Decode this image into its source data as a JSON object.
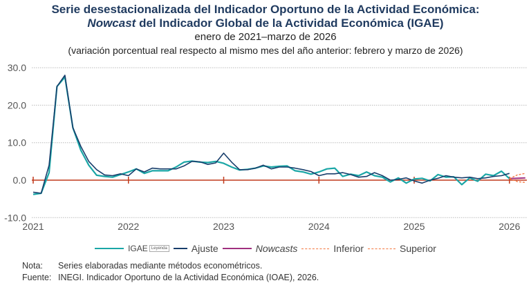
{
  "title": {
    "line1": "Serie desestacionalizada del Indicador Oportuno de la Actividad Económica:",
    "line2_em": "Nowcast",
    "line2_rest": " del Indicador Global de la Actividad Económica (IGAE)",
    "period": "enero de 2021–marzo de 2026",
    "subtitle": "(variación porcentual real respecto al mismo mes del año anterior: febrero y marzo de 2026)"
  },
  "legend": {
    "igae": "IGAE",
    "tooltip": "Leyenda",
    "ajuste": "Ajuste",
    "nowcasts": "Nowcasts",
    "inferior": "Inferior",
    "superior": "Superior"
  },
  "notes": {
    "nota_label": "Nota:",
    "nota": "Series elaboradas mediante métodos econométricos.",
    "fuente_label": "Fuente:",
    "fuente": "INEGI. Indicador Oportuno de la Actividad Económica (IOAE), 2026."
  },
  "chart_data": {
    "type": "line",
    "ylim": [
      -10,
      30
    ],
    "yticks": [
      "30.0",
      "20.0",
      "10.0",
      "0.0",
      "-10.0"
    ],
    "ytick_values": [
      30,
      20,
      10,
      0,
      -10
    ],
    "xticks": [
      "2021",
      "2022",
      "2023",
      "2024",
      "2025",
      "2026"
    ],
    "x_start": "2021-01",
    "grid": "horizontal dotted",
    "legend_position": "bottom",
    "colors": {
      "igae": "#1aa6a6",
      "ajuste": "#173d6b",
      "nowcasts": "#a0307f",
      "bands": "#f4743b",
      "zero": "#c0391b"
    },
    "series": [
      {
        "name": "IGAE",
        "start": "2021-01",
        "values": [
          -3.8,
          -3.5,
          2,
          25,
          27.5,
          14,
          8,
          4,
          1.3,
          1,
          0.8,
          1.5,
          2.2,
          3,
          1.8,
          2.5,
          2.5,
          2.5,
          3.5,
          4.8,
          5.1,
          4.8,
          4.7,
          5,
          4.5,
          3.5,
          2.7,
          2.9,
          3.2,
          3.8,
          3.5,
          3.7,
          3.8,
          2.5,
          2.2,
          1.6,
          2.2,
          3,
          3.2,
          1,
          1.6,
          1.2,
          2.2,
          1.2,
          0.8,
          -0.5,
          0.6,
          -0.8,
          0.3,
          0.5,
          -0.2,
          1.5,
          0.8,
          0.9,
          -1.2,
          0.6,
          -0.3,
          1.6,
          1.2,
          2.4,
          0.4
        ]
      },
      {
        "name": "Ajuste",
        "start": "2021-01",
        "values": [
          -3.2,
          -3.5,
          4,
          25,
          28,
          14,
          9,
          5,
          2.8,
          1.4,
          1.2,
          1.7,
          1.2,
          3,
          2.2,
          3.2,
          3,
          3,
          3,
          3.8,
          5,
          4.9,
          4.2,
          4.6,
          7.2,
          4.8,
          2.8,
          2.8,
          3.2,
          4,
          3,
          3.5,
          3.5,
          3.2,
          2.8,
          2.3,
          1.2,
          1.7,
          1.7,
          2,
          1.5,
          0.8,
          1,
          2,
          1.2,
          0,
          0.2,
          0.6,
          -0.2,
          -0.8,
          0,
          0.5,
          1.2,
          0.8,
          0.6,
          0.8,
          0.4,
          0.6,
          1,
          1.2,
          1.8
        ]
      },
      {
        "name": "Nowcasts",
        "start": "2026-01",
        "values": [
          0.4,
          0.5,
          0.6
        ]
      },
      {
        "name": "Inferior",
        "start": "2026-01",
        "values": [
          0.4,
          -0.4,
          -0.6
        ]
      },
      {
        "name": "Superior",
        "start": "2026-01",
        "values": [
          0.4,
          1.4,
          1.8
        ]
      }
    ]
  }
}
